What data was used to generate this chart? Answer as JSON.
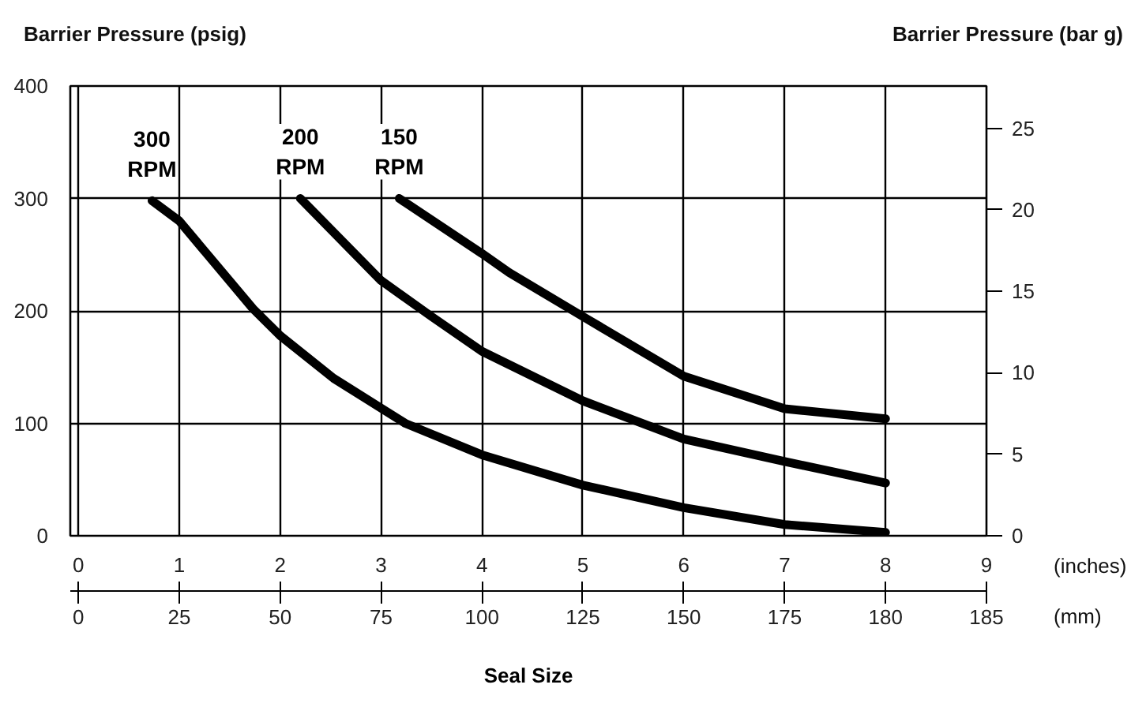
{
  "chart_data": {
    "type": "line",
    "xlabel": "Seal Size",
    "ylabel": "Barrier Pressure (psig)",
    "y2label": "Barrier Pressure (bar g)",
    "annotations": [
      "(inches)",
      "(mm)",
      "0",
      "25",
      "50",
      "75",
      "100",
      "125",
      "150",
      "175",
      "180",
      "185"
    ],
    "xlim": [
      -0.08,
      9
    ],
    "xticks": [
      0,
      1,
      2,
      3,
      4,
      5,
      6,
      7,
      8,
      9
    ],
    "ylim": [
      0,
      400
    ],
    "yticks": [
      0,
      100,
      200,
      300,
      400
    ],
    "y2lim": [
      0,
      27.6
    ],
    "y2ticks": [
      0,
      5,
      10,
      15,
      20,
      25
    ],
    "grid": true,
    "series": [
      {
        "name": "300 RPM",
        "color": "#000000",
        "x": [
          0.73,
          1,
          1.73,
          2,
          2.53,
          3.24,
          4,
          5,
          6,
          7,
          8
        ],
        "values": [
          298,
          280,
          202,
          178,
          140,
          100,
          72,
          45,
          25,
          10,
          3
        ]
      },
      {
        "name": "200 RPM",
        "color": "#000000",
        "x": [
          2.2,
          3,
          3.5,
          4,
          5,
          6,
          7,
          8
        ],
        "values": [
          300,
          227,
          195,
          164,
          120,
          86,
          66,
          47
        ]
      },
      {
        "name": "150 RPM",
        "color": "#000000",
        "x": [
          3.18,
          4,
          4.27,
          5,
          6,
          7,
          8
        ],
        "values": [
          300,
          251,
          234,
          195,
          142,
          113,
          104
        ]
      }
    ]
  }
}
